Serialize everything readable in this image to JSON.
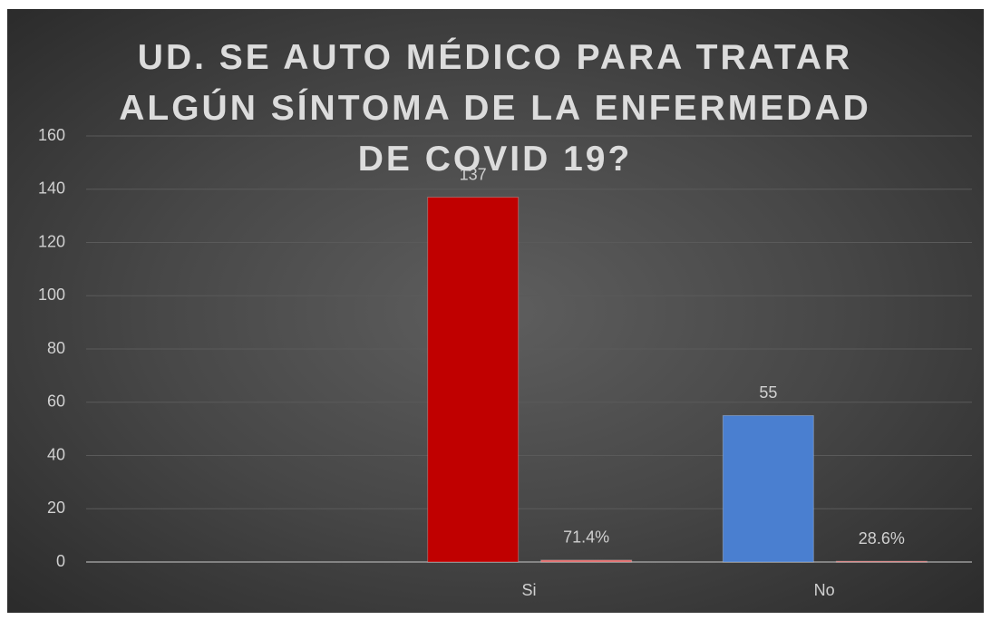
{
  "chart_data": {
    "type": "bar",
    "title": "UD. SE AUTO MÉDICO PARA TRATAR ALGÚN SÍNTOMA DE LA ENFERMEDAD DE COVID 19?",
    "categories": [
      null,
      "Si",
      "No"
    ],
    "series": [
      {
        "colors": [
          null,
          "#c00000",
          "#4a7fd0"
        ],
        "values": [
          null,
          137,
          55
        ]
      },
      {
        "color": "#e06666",
        "values": [
          null,
          0.714,
          0.286
        ],
        "value_labels": [
          null,
          "71.4%",
          "28.6%"
        ]
      }
    ],
    "ylim": [
      0,
      160
    ],
    "yticks": [
      0,
      20,
      40,
      60,
      80,
      100,
      120,
      140,
      160
    ],
    "grid": true
  }
}
